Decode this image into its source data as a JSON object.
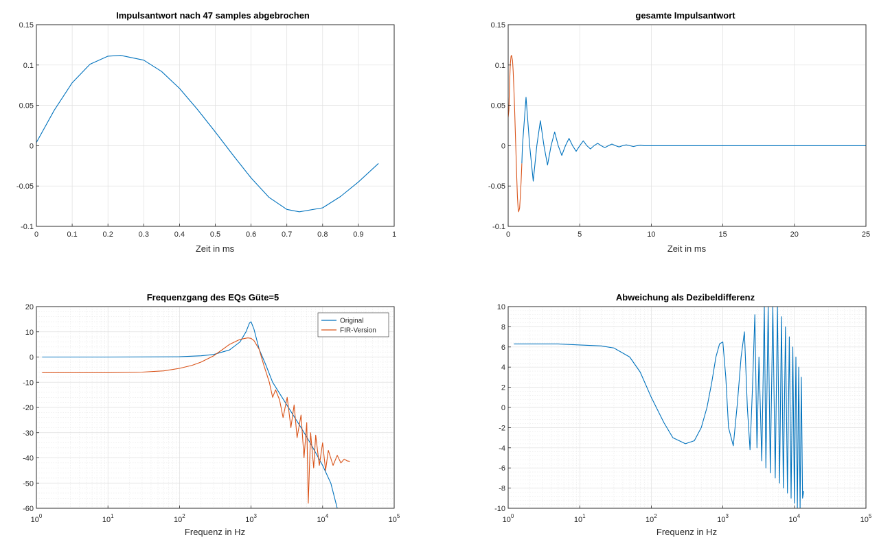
{
  "colors": {
    "blue": "#0072BD",
    "orange": "#D95319",
    "grid": "#dfdfdf",
    "axis": "#262626"
  },
  "chart_data": [
    {
      "id": "p1",
      "type": "line",
      "title": "Impulsantwort nach 47 samples abgebrochen",
      "xlabel": "Zeit in ms",
      "ylabel": "",
      "xscale": "linear",
      "xlim": [
        0,
        1
      ],
      "ylim": [
        -0.1,
        0.15
      ],
      "xticks": [
        0,
        0.1,
        0.2,
        0.3,
        0.4,
        0.5,
        0.6,
        0.7,
        0.8,
        0.9,
        1
      ],
      "xtick_labels": [
        "0",
        "0.1",
        "0.2",
        "0.3",
        "0.4",
        "0.5",
        "0.6",
        "0.7",
        "0.8",
        "0.9",
        "1"
      ],
      "yticks": [
        -0.1,
        -0.05,
        0,
        0.05,
        0.1,
        0.15
      ],
      "ytick_labels": [
        "-0.1",
        "-0.05",
        "0",
        "0.05",
        "0.1",
        "0.15"
      ],
      "grid": true,
      "series": [
        {
          "color": "#0072BD",
          "x": [
            0,
            0.05,
            0.1,
            0.15,
            0.2,
            0.235,
            0.3,
            0.35,
            0.4,
            0.45,
            0.5,
            0.55,
            0.6,
            0.65,
            0.7,
            0.735,
            0.8,
            0.85,
            0.9,
            0.956
          ],
          "y": [
            0.004,
            0.044,
            0.078,
            0.101,
            0.111,
            0.112,
            0.106,
            0.092,
            0.071,
            0.045,
            0.017,
            -0.012,
            -0.04,
            -0.064,
            -0.079,
            -0.082,
            -0.077,
            -0.063,
            -0.045,
            -0.022
          ]
        }
      ]
    },
    {
      "id": "p2",
      "type": "line",
      "title": "gesamte Impulsantwort",
      "xlabel": "Zeit in ms",
      "ylabel": "",
      "xscale": "linear",
      "xlim": [
        0,
        25
      ],
      "ylim": [
        -0.1,
        0.15
      ],
      "xticks": [
        0,
        5,
        10,
        15,
        20,
        25
      ],
      "xtick_labels": [
        "0",
        "5",
        "10",
        "15",
        "20",
        "25"
      ],
      "yticks": [
        -0.1,
        -0.05,
        0,
        0.05,
        0.1,
        0.15
      ],
      "ytick_labels": [
        "-0.1",
        "-0.05",
        "0",
        "0.05",
        "0.1",
        "0.15"
      ],
      "grid": true,
      "series": [
        {
          "color": "#0072BD",
          "x": [
            0.956,
            1.0,
            1.25,
            1.5,
            1.75,
            2.0,
            2.25,
            2.5,
            2.75,
            3.0,
            3.25,
            3.5,
            3.75,
            4.0,
            4.25,
            4.5,
            4.75,
            5.0,
            5.25,
            5.5,
            5.75,
            6.0,
            6.25,
            6.5,
            6.75,
            7.0,
            7.25,
            7.5,
            7.75,
            8.0,
            8.25,
            8.5,
            8.75,
            9.0,
            9.25,
            9.5,
            10,
            12,
            15,
            20,
            25
          ],
          "y": [
            -0.022,
            0.0,
            0.06,
            0.0,
            -0.044,
            0.0,
            0.031,
            0.0,
            -0.024,
            0.0,
            0.017,
            0.0,
            -0.012,
            0.0,
            0.009,
            0.0,
            -0.007,
            0.0,
            0.006,
            0.0,
            -0.004,
            0.0,
            0.003,
            0.0,
            -0.0025,
            0.0,
            0.002,
            0.0,
            -0.0015,
            0.0,
            0.001,
            0.0,
            -0.001,
            0.0,
            0.0006,
            0.0,
            0.0,
            0.0,
            0.0,
            0.0,
            0.0
          ]
        },
        {
          "color": "#D95319",
          "x": [
            0,
            0.05,
            0.1,
            0.15,
            0.2,
            0.235,
            0.3,
            0.35,
            0.4,
            0.45,
            0.5,
            0.55,
            0.6,
            0.65,
            0.7,
            0.735,
            0.8,
            0.85,
            0.9,
            0.956
          ],
          "y": [
            0.035,
            0.044,
            0.078,
            0.101,
            0.111,
            0.112,
            0.106,
            0.092,
            0.071,
            0.045,
            0.017,
            -0.012,
            -0.04,
            -0.064,
            -0.079,
            -0.082,
            -0.077,
            -0.063,
            -0.045,
            -0.022
          ]
        }
      ]
    },
    {
      "id": "p3",
      "type": "line",
      "title": "Frequenzgang des EQs Güte=5",
      "xlabel": "Frequenz in Hz",
      "ylabel": "",
      "xscale": "log",
      "xlim": [
        1,
        100000
      ],
      "ylim": [
        -60,
        20
      ],
      "xtick_base": [
        "10",
        "10",
        "10",
        "10",
        "10",
        "10"
      ],
      "xtick_exp": [
        "0",
        "1",
        "2",
        "3",
        "4",
        "5"
      ],
      "yticks": [
        -60,
        -50,
        -40,
        -30,
        -20,
        -10,
        0,
        10,
        20
      ],
      "ytick_labels": [
        "-60",
        "-50",
        "-40",
        "-30",
        "-20",
        "-10",
        "0",
        "10",
        "20"
      ],
      "grid": true,
      "legend_position": "top-right",
      "legend": [
        "Original",
        "FIR-Version"
      ],
      "series": [
        {
          "name": "Original",
          "color": "#0072BD",
          "x": [
            1.2,
            10,
            100,
            200,
            300,
            500,
            700,
            850,
            950,
            1000,
            1100,
            1300,
            1600,
            2000,
            3000,
            5000,
            7000,
            10000,
            13000,
            16000
          ],
          "y": [
            0.0,
            0.0,
            0.1,
            0.5,
            1.0,
            2.8,
            6.0,
            10.0,
            13.5,
            14.0,
            11.0,
            3.0,
            -3.0,
            -10.0,
            -18.0,
            -28.0,
            -35.0,
            -43.0,
            -50.0,
            -60.0
          ]
        },
        {
          "name": "FIR-Version",
          "color": "#D95319",
          "x": [
            1.2,
            10,
            30,
            60,
            100,
            150,
            200,
            300,
            400,
            500,
            700,
            900,
            1000,
            1100,
            1300,
            1500,
            1800,
            2000,
            2200,
            2500,
            2800,
            3200,
            3600,
            4000,
            4400,
            5000,
            5500,
            6000,
            6300,
            6800,
            7500,
            8000,
            9000,
            10000,
            11000,
            12000,
            14000,
            16000,
            18000,
            20000,
            22000,
            24000
          ],
          "y": [
            -6.2,
            -6.2,
            -6.0,
            -5.5,
            -4.5,
            -3.3,
            -2.0,
            0.5,
            3.0,
            5.0,
            7.0,
            7.6,
            7.4,
            6.5,
            3.0,
            -3.0,
            -10.0,
            -16.0,
            -13.0,
            -17.0,
            -24.0,
            -16.0,
            -28.0,
            -19.0,
            -32.0,
            -23.0,
            -40.0,
            -26.0,
            -58.0,
            -30.0,
            -44.0,
            -31.0,
            -43.0,
            -34.0,
            -45.0,
            -37.0,
            -43.0,
            -39.0,
            -42.0,
            -40.5,
            -41.2,
            -41.4
          ]
        }
      ]
    },
    {
      "id": "p4",
      "type": "line",
      "title": "Abweichung als Dezibeldifferenz",
      "xlabel": "Frequenz in Hz",
      "ylabel": "",
      "xscale": "log",
      "xlim": [
        1,
        100000
      ],
      "ylim": [
        -10,
        10
      ],
      "xtick_base": [
        "10",
        "10",
        "10",
        "10",
        "10",
        "10"
      ],
      "xtick_exp": [
        "0",
        "1",
        "2",
        "3",
        "4",
        "5"
      ],
      "yticks": [
        -10,
        -8,
        -6,
        -4,
        -2,
        0,
        2,
        4,
        6,
        8,
        10
      ],
      "ytick_labels": [
        "-10",
        "-8",
        "-6",
        "-4",
        "-2",
        "0",
        "2",
        "4",
        "6",
        "8",
        "10"
      ],
      "grid": true,
      "series": [
        {
          "color": "#0072BD",
          "x": [
            1.2,
            5,
            10,
            20,
            30,
            50,
            70,
            100,
            150,
            200,
            300,
            400,
            500,
            600,
            700,
            800,
            900,
            1000,
            1100,
            1200,
            1400,
            1600,
            1800,
            2000,
            2200,
            2400,
            2600,
            2800,
            3000,
            3200,
            3500,
            3800,
            4000,
            4300,
            4600,
            5000,
            5400,
            5800,
            6200,
            6600,
            7000,
            7500,
            8000,
            8500,
            9000,
            9500,
            10000,
            10500,
            11000,
            11500,
            12000,
            12500,
            13000,
            13500
          ],
          "y": [
            6.3,
            6.3,
            6.2,
            6.1,
            5.9,
            5.0,
            3.5,
            1.0,
            -1.5,
            -3.0,
            -3.6,
            -3.3,
            -2.0,
            0.0,
            2.5,
            5.0,
            6.3,
            6.5,
            3.0,
            -2.0,
            -3.8,
            0.5,
            5.0,
            7.5,
            0.0,
            -4.2,
            2.0,
            9.2,
            -4.0,
            5.0,
            -5.3,
            10.0,
            -6.0,
            10.0,
            -6.5,
            10.0,
            -7.0,
            10.0,
            -7.5,
            9.0,
            -8.0,
            8.0,
            -8.5,
            7.0,
            -9.0,
            6.0,
            -9.5,
            5.0,
            -10.0,
            4.0,
            -10.0,
            3.0,
            -9.0,
            -8.3
          ]
        }
      ]
    }
  ]
}
